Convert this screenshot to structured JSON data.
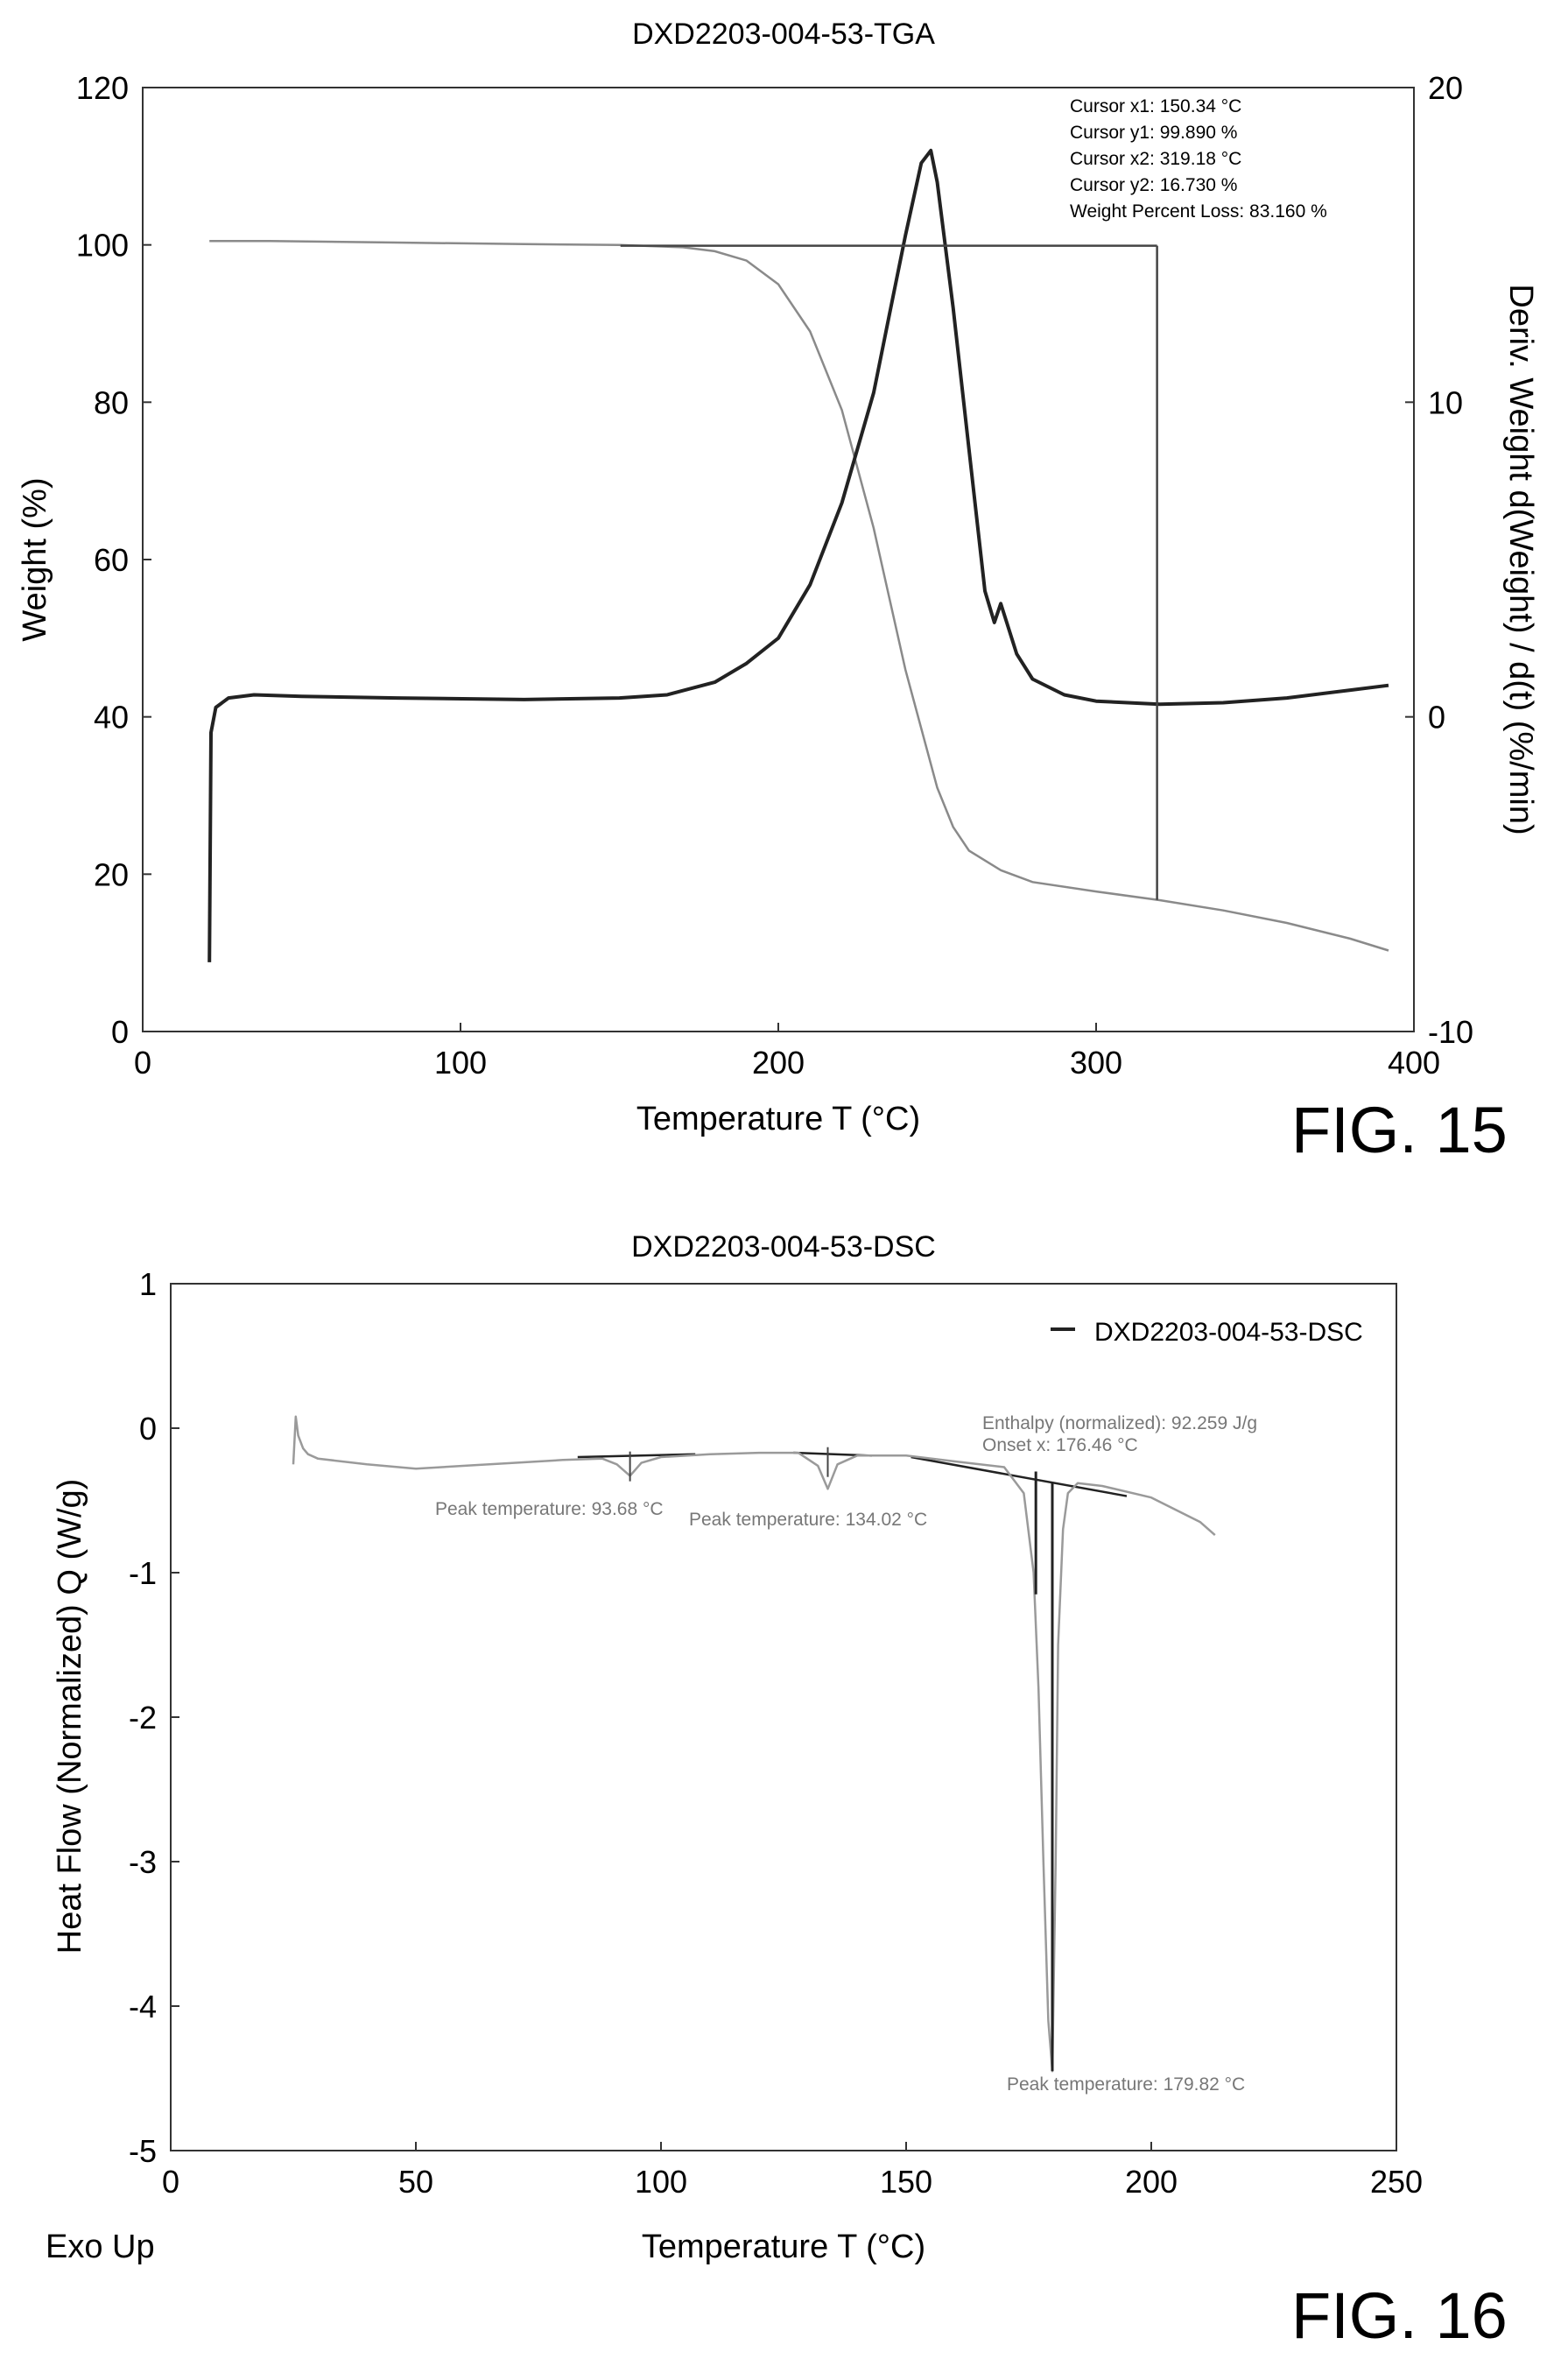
{
  "chart_data": [
    {
      "type": "line",
      "figure_label": "FIG. 15",
      "title": "DXD2203-004-53-TGA",
      "xlabel": "Temperature T (°C)",
      "ylabel": "Weight (%)",
      "y2label": "Deriv. Weight d(Weight) / d(t) (%/min)",
      "xlim": [
        0,
        400
      ],
      "ylim": [
        0,
        120
      ],
      "y2lim": [
        -10,
        20
      ],
      "x_ticks": [
        "0",
        "100",
        "200",
        "300",
        "400"
      ],
      "y_ticks": [
        "0",
        "20",
        "40",
        "60",
        "80",
        "100",
        "120"
      ],
      "y2_ticks": [
        "-10",
        "0",
        "10",
        "20"
      ],
      "grid": false,
      "series": [
        {
          "axis": "left",
          "color": "#8a8a8a",
          "x": [
            21,
            40,
            80,
            120,
            150,
            170,
            180,
            190,
            200,
            210,
            220,
            230,
            240,
            250,
            255,
            260,
            270,
            280,
            300,
            320,
            340,
            360,
            380,
            392
          ],
          "y": [
            100.5,
            100.5,
            100.3,
            100.1,
            100.0,
            99.7,
            99.2,
            98.0,
            95.0,
            89.0,
            79.0,
            64.0,
            46.0,
            31.0,
            26.0,
            23.0,
            20.5,
            19.0,
            17.8,
            16.7,
            15.4,
            13.8,
            11.8,
            10.3
          ]
        },
        {
          "axis": "right",
          "color": "#222222",
          "x": [
            21,
            21.5,
            23,
            27,
            35,
            50,
            80,
            120,
            150,
            165,
            180,
            190,
            200,
            210,
            220,
            230,
            235,
            240,
            245,
            248,
            250,
            255,
            260,
            265,
            268,
            270,
            275,
            280,
            290,
            300,
            320,
            340,
            360,
            380,
            392
          ],
          "y": [
            -7.8,
            -0.5,
            0.3,
            0.6,
            0.7,
            0.65,
            0.6,
            0.55,
            0.6,
            0.7,
            1.1,
            1.7,
            2.5,
            4.2,
            6.8,
            10.3,
            12.8,
            15.3,
            17.6,
            18.0,
            17.0,
            13.0,
            8.5,
            4.0,
            3.0,
            3.6,
            2.0,
            1.2,
            0.7,
            0.5,
            0.4,
            0.45,
            0.6,
            0.85,
            1.0
          ]
        }
      ],
      "cursor_lines": {
        "x1": 150.34,
        "y1": 99.89,
        "x2": 319.18,
        "y2": 16.73
      },
      "annotations": [
        "Cursor x1: 150.34 °C",
        "Cursor y1: 99.890 %",
        "Cursor x2: 319.18 °C",
        "Cursor y2: 16.730 %",
        "Weight Percent Loss: 83.160 %"
      ]
    },
    {
      "type": "line",
      "figure_label": "FIG. 16",
      "title": "DXD2203-004-53-DSC",
      "xlabel": "Temperature T (°C)",
      "ylabel": "Heat Flow (Normalized) Q (W/g)",
      "corner_label": "Exo Up",
      "xlim": [
        0,
        250
      ],
      "ylim": [
        -5,
        1
      ],
      "x_ticks": [
        "0",
        "50",
        "100",
        "150",
        "200",
        "250"
      ],
      "y_ticks": [
        "1",
        "0",
        "-1",
        "-2",
        "-3",
        "-4",
        "-5"
      ],
      "grid": false,
      "legend": "top-right",
      "series": [
        {
          "name": "DXD2203-004-53-DSC",
          "color": "#9a9a9a",
          "x": [
            25,
            25.5,
            26,
            27,
            28,
            30,
            40,
            50,
            60,
            70,
            80,
            88,
            91,
            93.68,
            96,
            100,
            110,
            120,
            128,
            132,
            134.02,
            136,
            140,
            150,
            160,
            170,
            174,
            176,
            177,
            178,
            179,
            179.82,
            180.5,
            181,
            182,
            183,
            185,
            190,
            200,
            210,
            213
          ],
          "y": [
            -0.25,
            0.08,
            -0.05,
            -0.14,
            -0.18,
            -0.21,
            -0.25,
            -0.28,
            -0.26,
            -0.24,
            -0.22,
            -0.21,
            -0.25,
            -0.33,
            -0.24,
            -0.2,
            -0.18,
            -0.17,
            -0.17,
            -0.26,
            -0.42,
            -0.25,
            -0.19,
            -0.19,
            -0.23,
            -0.27,
            -0.45,
            -1.0,
            -1.8,
            -3.0,
            -4.1,
            -4.45,
            -3.0,
            -1.5,
            -0.7,
            -0.45,
            -0.38,
            -0.4,
            -0.48,
            -0.65,
            -0.74
          ]
        }
      ],
      "baselines": [
        {
          "x": [
            83,
            107
          ],
          "y": [
            -0.2,
            -0.18
          ]
        },
        {
          "x": [
            127,
            143
          ],
          "y": [
            -0.17,
            -0.19
          ]
        },
        {
          "x": [
            151,
            195
          ],
          "y": [
            -0.2,
            -0.47
          ]
        }
      ],
      "onset_line": {
        "x": 176.46
      },
      "peak_tick_temps": [
        93.68,
        134.02
      ],
      "annotations": [
        "Peak temperature: 93.68 °C",
        "Peak temperature: 134.02 °C",
        "Enthalpy (normalized): 92.259 J/g",
        "Onset x: 176.46 °C",
        "Peak temperature: 179.82 °C"
      ]
    }
  ]
}
